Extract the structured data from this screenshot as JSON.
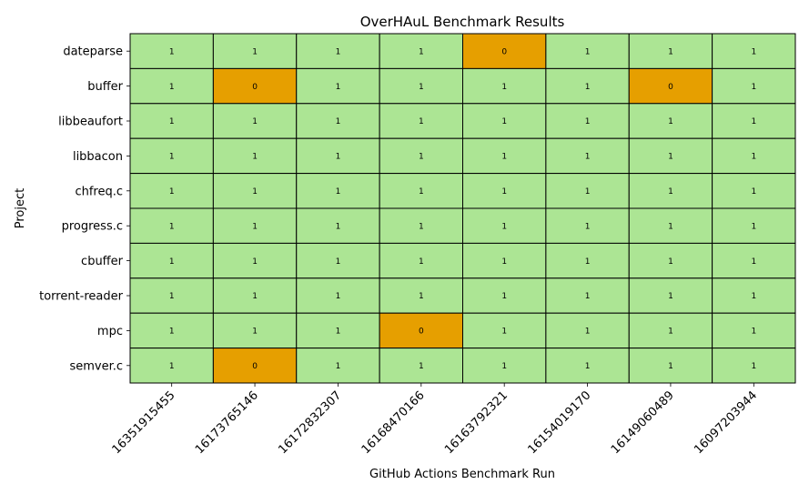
{
  "chart_data": {
    "type": "heatmap",
    "title": "OverHAuL Benchmark Results",
    "xlabel": "GitHub Actions Benchmark Run",
    "ylabel": "Project",
    "x_categories": [
      "16351915455",
      "16173765146",
      "16172832307",
      "16168470166",
      "16163792321",
      "16154019170",
      "16149060489",
      "16097203944"
    ],
    "y_categories": [
      "dateparse",
      "buffer",
      "libbeaufort",
      "libbacon",
      "chfreq.c",
      "progress.c",
      "cbuffer",
      "torrent-reader",
      "mpc",
      "semver.c"
    ],
    "values": [
      [
        1,
        1,
        1,
        1,
        0,
        1,
        1,
        1
      ],
      [
        1,
        0,
        1,
        1,
        1,
        1,
        0,
        1
      ],
      [
        1,
        1,
        1,
        1,
        1,
        1,
        1,
        1
      ],
      [
        1,
        1,
        1,
        1,
        1,
        1,
        1,
        1
      ],
      [
        1,
        1,
        1,
        1,
        1,
        1,
        1,
        1
      ],
      [
        1,
        1,
        1,
        1,
        1,
        1,
        1,
        1
      ],
      [
        1,
        1,
        1,
        1,
        1,
        1,
        1,
        1
      ],
      [
        1,
        1,
        1,
        1,
        1,
        1,
        1,
        1
      ],
      [
        1,
        1,
        1,
        0,
        1,
        1,
        1,
        1
      ],
      [
        1,
        0,
        1,
        1,
        1,
        1,
        1,
        1
      ]
    ],
    "colors": {
      "1": "#ace594",
      "0": "#e69f00"
    },
    "cell_border_color": "#000000",
    "grid": false,
    "legend": "none"
  }
}
